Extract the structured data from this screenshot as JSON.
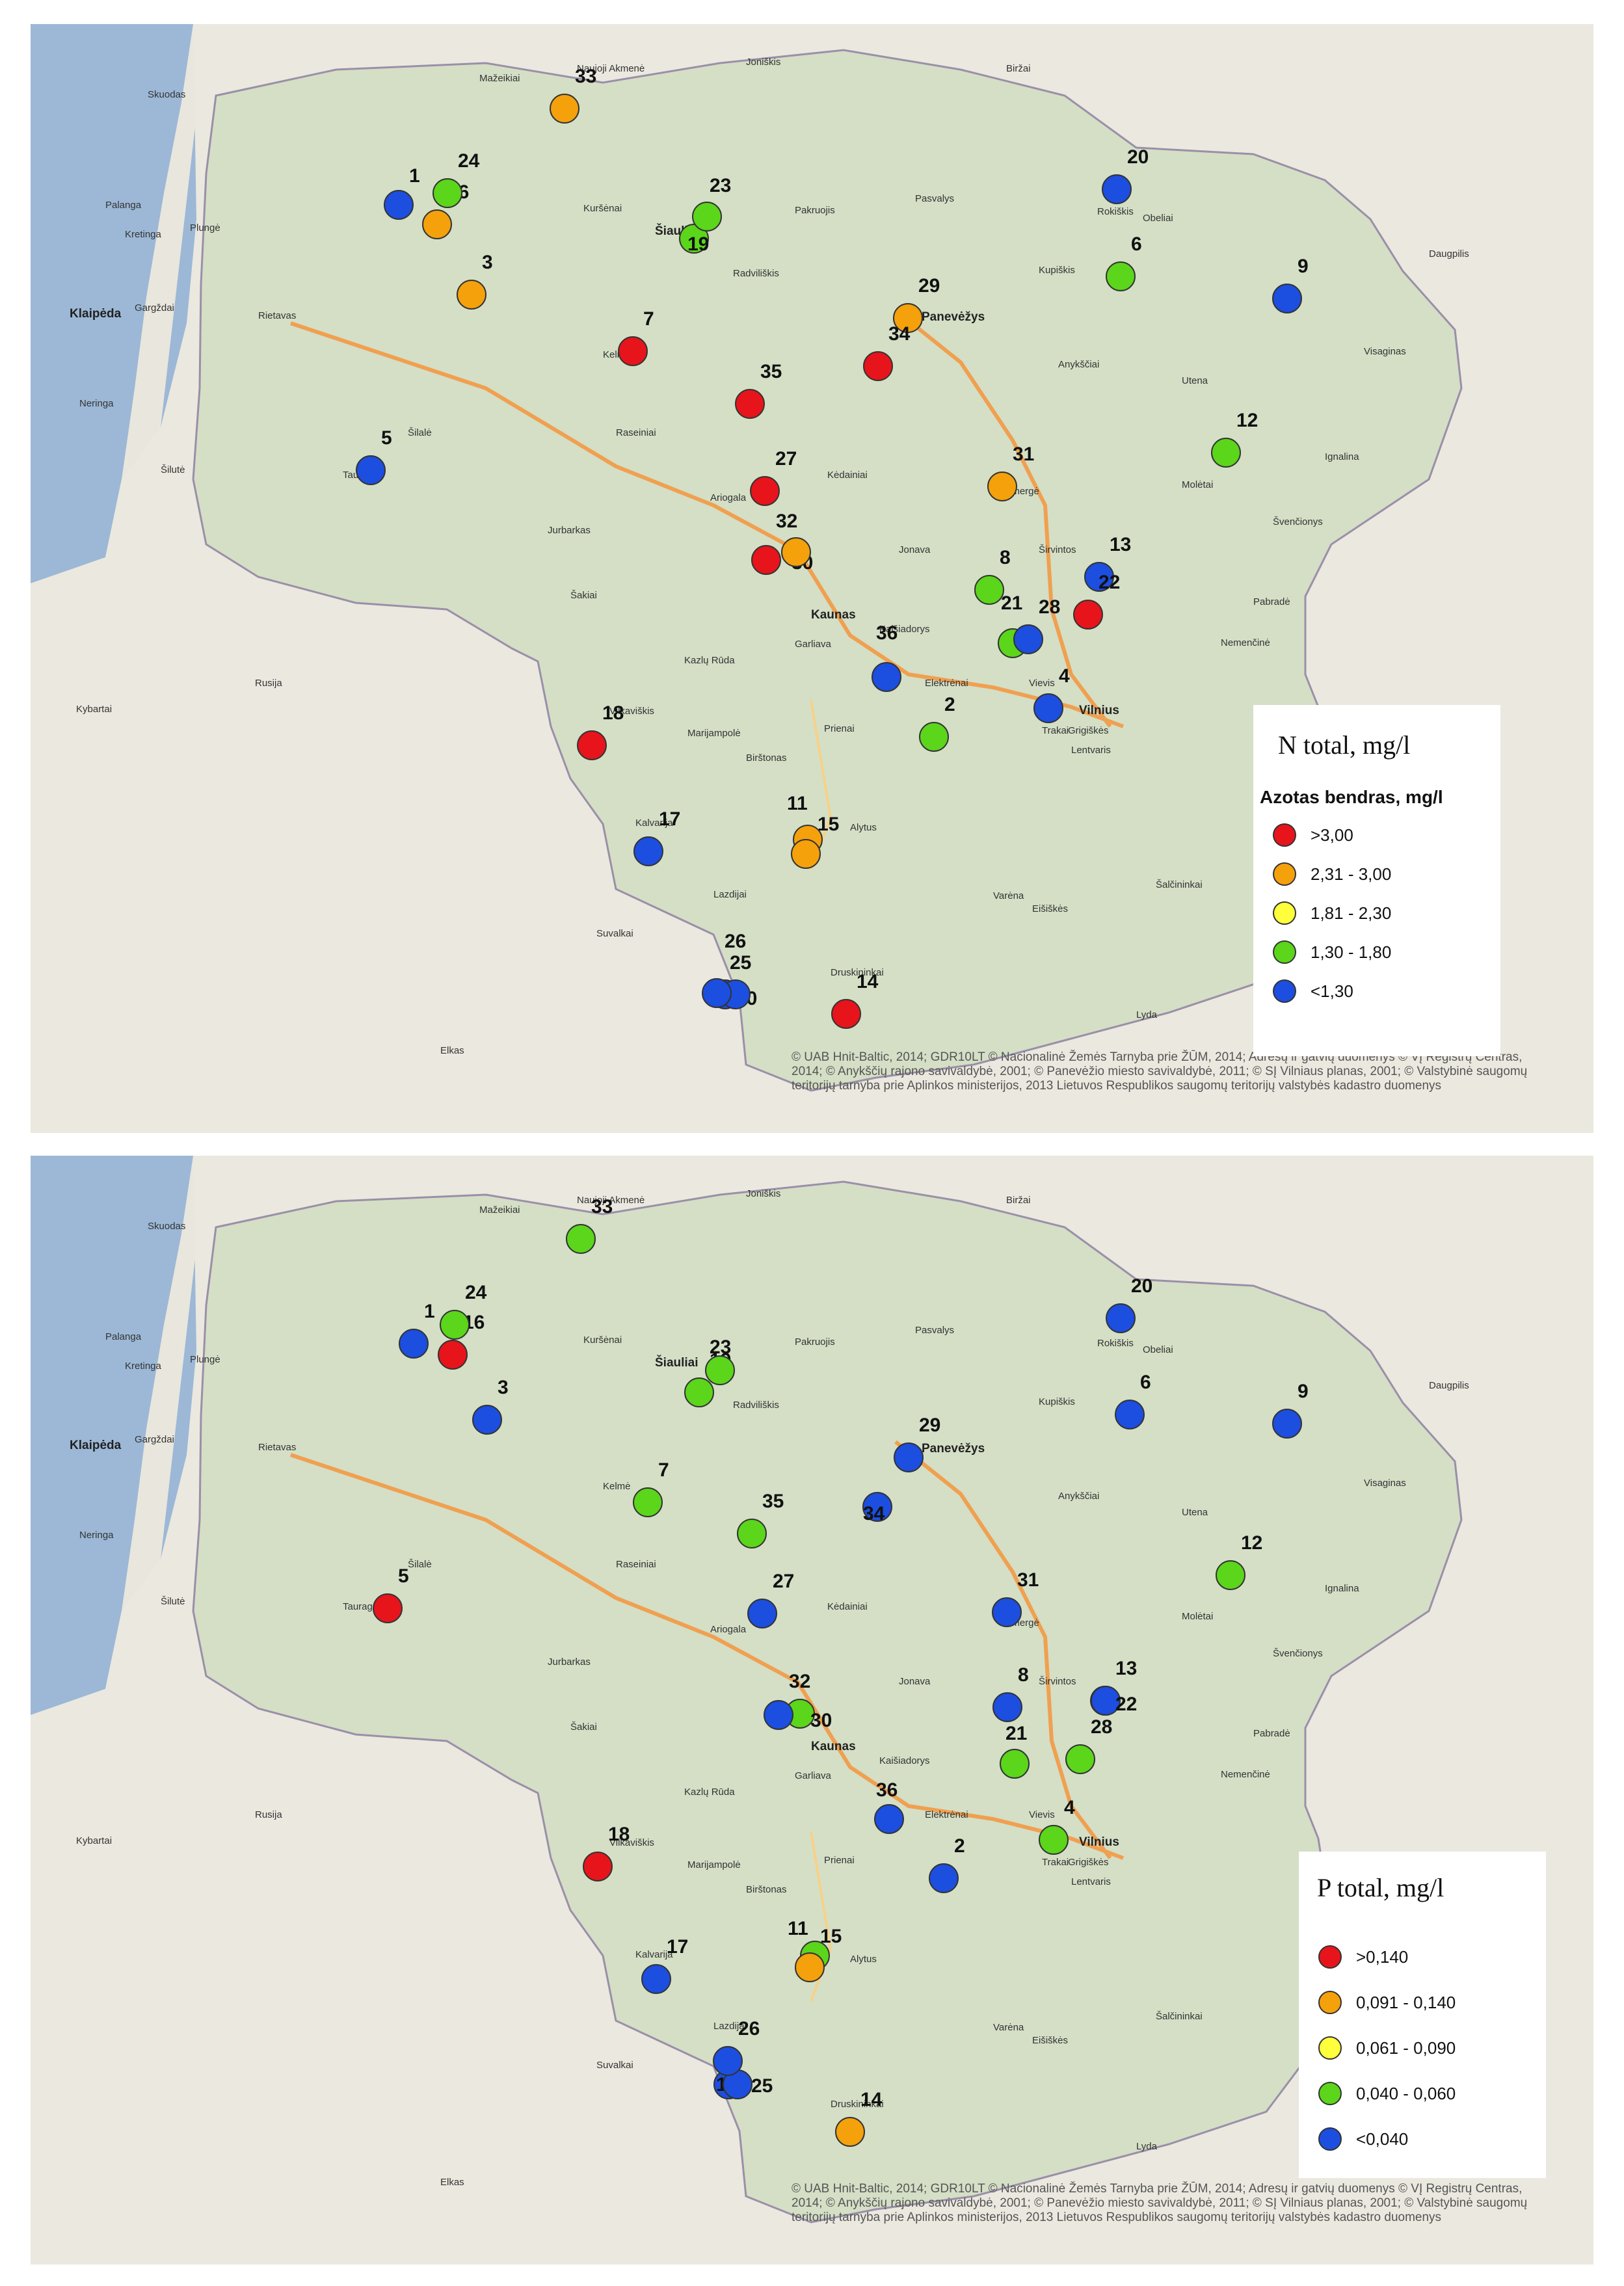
{
  "colors": {
    "red": "#e8141b",
    "orange": "#f5a10c",
    "yellow": "#ffff3c",
    "green": "#5bd61b",
    "blue": "#1c4ee0"
  },
  "credits": "© UAB Hnit-Baltic, 2014; GDR10LT © Nacionalinė Žemės Tarnyba prie ŽŪM, 2014; Adresų ir gatvių duomenys © VĮ Registrų Centras, 2014; © Anykščių rajono savivaldybė, 2001; © Panevėžio miesto savivaldybė, 2011; © SĮ Vilniaus planas, 2001; © Valstybinė saugomų teritorijų tarnyba prie Aplinkos ministerijos, 2013 Lietuvos Respublikos saugomų teritorijų valstybės kadastro duomenys",
  "places": [
    "Mažeikiai",
    "Naujoji Akmenė",
    "Joniškis",
    "Biržai",
    "Skuodas",
    "Palanga",
    "Kretinga",
    "Plungė",
    "Kuršėnai",
    "Šiauliai",
    "Pakruojis",
    "Pasvalys",
    "Rokiškis",
    "Obeliai",
    "Daugpilis",
    "Klaipėda",
    "Gargždai",
    "Rietavas",
    "Radviliškis",
    "Panevėžys",
    "Kupiškis",
    "Neringa",
    "Kelmė",
    "Anykščiai",
    "Utena",
    "Visaginas",
    "Šilalė",
    "Raseiniai",
    "Šilutė",
    "Tauragė",
    "Kėdainiai",
    "Ignalina",
    "Ariogala",
    "Ukmergė",
    "Molėtai",
    "Jurbarkas",
    "Jonava",
    "Širvintos",
    "Švenčionys",
    "Šakiai",
    "Kaunas",
    "Pabradė",
    "Garliava",
    "Kaišiadorys",
    "Nemenčinė",
    "Rusija",
    "Kybartai",
    "Vilkaviškis",
    "Marijampolė",
    "Prienai",
    "Elektrėnai",
    "Vievis",
    "Vilnius",
    "Trakai",
    "Grigiškės",
    "Lentvaris",
    "Birštonas",
    "Kazlų Rūda",
    "Kalvarija",
    "Alytus",
    "Lazdijai",
    "Varėna",
    "Šalčininkai",
    "Eišiškės",
    "Druskininkai",
    "Suvalkai",
    "Lyda",
    "Elkas"
  ],
  "panels": [
    {
      "title": "N total, mg/l",
      "legend_heading": "Azotas bendras, mg/l",
      "classes": [
        {
          "label": ">3,00",
          "color": "red"
        },
        {
          "label": "2,31 - 3,00",
          "color": "orange"
        },
        {
          "label": "1,81 - 2,30",
          "color": "yellow"
        },
        {
          "label": "1,30 - 1,80",
          "color": "green"
        },
        {
          "label": "<1,30",
          "color": "blue"
        }
      ],
      "sites": [
        {
          "id": "1",
          "color": "blue"
        },
        {
          "id": "2",
          "color": "green"
        },
        {
          "id": "3",
          "color": "orange"
        },
        {
          "id": "4",
          "color": "blue"
        },
        {
          "id": "5",
          "color": "blue"
        },
        {
          "id": "6",
          "color": "green"
        },
        {
          "id": "7",
          "color": "red"
        },
        {
          "id": "8",
          "color": "green"
        },
        {
          "id": "9",
          "color": "blue"
        },
        {
          "id": "10",
          "color": "blue"
        },
        {
          "id": "11",
          "color": "orange"
        },
        {
          "id": "12",
          "color": "green"
        },
        {
          "id": "13",
          "color": "blue"
        },
        {
          "id": "14",
          "color": "red"
        },
        {
          "id": "15",
          "color": "orange"
        },
        {
          "id": "16",
          "color": "orange"
        },
        {
          "id": "17",
          "color": "blue"
        },
        {
          "id": "18",
          "color": "red"
        },
        {
          "id": "19",
          "color": "green"
        },
        {
          "id": "20",
          "color": "blue"
        },
        {
          "id": "21",
          "color": "green"
        },
        {
          "id": "22",
          "color": "red"
        },
        {
          "id": "23",
          "color": "green"
        },
        {
          "id": "24",
          "color": "green"
        },
        {
          "id": "25",
          "color": "blue"
        },
        {
          "id": "26",
          "color": "blue"
        },
        {
          "id": "27",
          "color": "red"
        },
        {
          "id": "28",
          "color": "blue"
        },
        {
          "id": "29",
          "color": "orange"
        },
        {
          "id": "30",
          "color": "red"
        },
        {
          "id": "31",
          "color": "orange"
        },
        {
          "id": "32",
          "color": "orange"
        },
        {
          "id": "33",
          "color": "orange"
        },
        {
          "id": "34",
          "color": "red"
        },
        {
          "id": "35",
          "color": "red"
        },
        {
          "id": "36",
          "color": "blue"
        }
      ]
    },
    {
      "title": "P total, mg/l",
      "legend_heading": "",
      "classes": [
        {
          "label": ">0,140",
          "color": "red"
        },
        {
          "label": "0,091 - 0,140",
          "color": "orange"
        },
        {
          "label": "0,061 - 0,090",
          "color": "yellow"
        },
        {
          "label": "0,040 -  0,060",
          "color": "green"
        },
        {
          "label": "<0,040",
          "color": "blue"
        }
      ],
      "sites": [
        {
          "id": "1",
          "color": "blue"
        },
        {
          "id": "2",
          "color": "blue"
        },
        {
          "id": "3",
          "color": "blue"
        },
        {
          "id": "4",
          "color": "green"
        },
        {
          "id": "5",
          "color": "red"
        },
        {
          "id": "6",
          "color": "blue"
        },
        {
          "id": "7",
          "color": "green"
        },
        {
          "id": "8",
          "color": "blue"
        },
        {
          "id": "9",
          "color": "blue"
        },
        {
          "id": "10",
          "color": "blue"
        },
        {
          "id": "11",
          "color": "green"
        },
        {
          "id": "12",
          "color": "green"
        },
        {
          "id": "13",
          "color": "blue"
        },
        {
          "id": "14",
          "color": "orange"
        },
        {
          "id": "15",
          "color": "orange"
        },
        {
          "id": "16",
          "color": "red"
        },
        {
          "id": "17",
          "color": "blue"
        },
        {
          "id": "18",
          "color": "red"
        },
        {
          "id": "19",
          "color": "green"
        },
        {
          "id": "20",
          "color": "blue"
        },
        {
          "id": "21",
          "color": "green"
        },
        {
          "id": "22",
          "color": "blue"
        },
        {
          "id": "23",
          "color": "green"
        },
        {
          "id": "24",
          "color": "green"
        },
        {
          "id": "25",
          "color": "blue"
        },
        {
          "id": "26",
          "color": "blue"
        },
        {
          "id": "27",
          "color": "blue"
        },
        {
          "id": "28",
          "color": "green"
        },
        {
          "id": "29",
          "color": "blue"
        },
        {
          "id": "30",
          "color": "green"
        },
        {
          "id": "31",
          "color": "blue"
        },
        {
          "id": "32",
          "color": "blue"
        },
        {
          "id": "33",
          "color": "green"
        },
        {
          "id": "34",
          "color": "blue"
        },
        {
          "id": "35",
          "color": "green"
        },
        {
          "id": "36",
          "color": "blue"
        }
      ]
    }
  ]
}
